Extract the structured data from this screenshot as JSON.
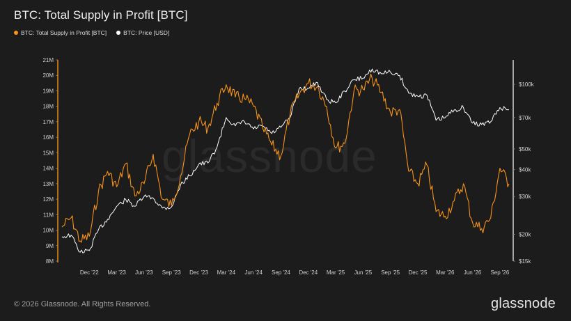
{
  "title": "BTC: Total Supply in Profit [BTC]",
  "legend": [
    {
      "label": "BTC: Total Supply in Profit [BTC]",
      "color": "#f7931a"
    },
    {
      "label": "BTC: Price [USD]",
      "color": "#ffffff"
    }
  ],
  "watermark": "glassnode",
  "footer": "© 2026 Glassnode. All Rights Reserved.",
  "brand": "glassnode",
  "chart_data": {
    "type": "line",
    "x_tick_labels": [
      "Dec '22",
      "Mar '23",
      "Jun '23",
      "Sep '23",
      "Dec '23",
      "Mar '24",
      "Jun '24",
      "Sep '24",
      "Dec '24",
      "Mar '25",
      "Jun '25",
      "Sep '25",
      "Dec '25",
      "Mar '26",
      "Jun '26",
      "Sep '26"
    ],
    "y_left": {
      "scale": "linear",
      "range": [
        8,
        21
      ],
      "ticks": [
        8,
        9,
        10,
        11,
        12,
        13,
        14,
        15,
        16,
        17,
        18,
        19,
        20,
        21
      ],
      "tick_labels": [
        "8M",
        "9M",
        "10M",
        "11M",
        "12M",
        "13M",
        "14M",
        "15M",
        "16M",
        "17M",
        "18M",
        "19M",
        "20M",
        "21M"
      ]
    },
    "y_right": {
      "scale": "log",
      "range": [
        15000,
        130000
      ],
      "ticks": [
        15000,
        20000,
        30000,
        40000,
        50000,
        70000,
        100000
      ],
      "tick_labels": [
        "$15k",
        "$20k",
        "$30k",
        "$40k",
        "$50k",
        "$70k",
        "$100k"
      ]
    },
    "series": [
      {
        "name": "BTC: Total Supply in Profit [BTC]",
        "color": "#f7931a",
        "axis": "left",
        "points": [
          [
            "Sep '22",
            10.2
          ],
          [
            "Oct '22",
            10.8
          ],
          [
            "Nov '22",
            9.3
          ],
          [
            "Dec '22",
            9.6
          ],
          [
            "Jan '23",
            12.5
          ],
          [
            "Feb '23",
            13.8
          ],
          [
            "Mar '23",
            12.8
          ],
          [
            "Apr '23",
            14.3
          ],
          [
            "May '23",
            12.2
          ],
          [
            "Jun '23",
            13.0
          ],
          [
            "Jul '23",
            14.9
          ],
          [
            "Aug '23",
            12.0
          ],
          [
            "Sep '23",
            11.6
          ],
          [
            "Oct '23",
            13.5
          ],
          [
            "Nov '23",
            16.2
          ],
          [
            "Dec '23",
            17.0
          ],
          [
            "Jan '24",
            16.6
          ],
          [
            "Feb '24",
            18.2
          ],
          [
            "Mar '24",
            19.4
          ],
          [
            "Apr '24",
            18.6
          ],
          [
            "May '24",
            18.5
          ],
          [
            "Jun '24",
            18.0
          ],
          [
            "Jul '24",
            16.6
          ],
          [
            "Aug '24",
            15.5
          ],
          [
            "Sep '24",
            14.8
          ],
          [
            "Oct '24",
            17.5
          ],
          [
            "Nov '24",
            18.8
          ],
          [
            "Dec '24",
            19.5
          ],
          [
            "Jan '25",
            19.3
          ],
          [
            "Feb '25",
            18.0
          ],
          [
            "Mar '25",
            15.3
          ],
          [
            "Apr '25",
            15.6
          ],
          [
            "May '25",
            19.0
          ],
          [
            "Jun '25",
            19.1
          ],
          [
            "Jul '25",
            19.8
          ],
          [
            "Aug '25",
            18.9
          ],
          [
            "Sep '25",
            17.6
          ],
          [
            "Oct '25",
            17.8
          ],
          [
            "Nov '25",
            13.8
          ],
          [
            "Dec '25",
            13.0
          ],
          [
            "Jan '26",
            14.2
          ],
          [
            "Feb '26",
            11.2
          ],
          [
            "Mar '26",
            10.9
          ],
          [
            "Apr '26",
            11.9
          ],
          [
            "May '26",
            13.0
          ],
          [
            "Jun '26",
            10.5
          ],
          [
            "Jul '26",
            10.1
          ],
          [
            "Aug '26",
            10.8
          ],
          [
            "Sep '26",
            14.0
          ],
          [
            "Oct '26",
            13.0
          ]
        ]
      },
      {
        "name": "BTC: Price [USD]",
        "color": "#ffffff",
        "axis": "right",
        "points": [
          [
            "Sep '22",
            19500
          ],
          [
            "Oct '22",
            19800
          ],
          [
            "Nov '22",
            16500
          ],
          [
            "Dec '22",
            16800
          ],
          [
            "Jan '23",
            21000
          ],
          [
            "Feb '23",
            23500
          ],
          [
            "Mar '23",
            27000
          ],
          [
            "Apr '23",
            29000
          ],
          [
            "May '23",
            27000
          ],
          [
            "Jun '23",
            30000
          ],
          [
            "Jul '23",
            29500
          ],
          [
            "Aug '23",
            26500
          ],
          [
            "Sep '23",
            26800
          ],
          [
            "Oct '23",
            34000
          ],
          [
            "Nov '23",
            37500
          ],
          [
            "Dec '23",
            42500
          ],
          [
            "Jan '24",
            43000
          ],
          [
            "Feb '24",
            51000
          ],
          [
            "Mar '24",
            70000
          ],
          [
            "Apr '24",
            64000
          ],
          [
            "May '24",
            67000
          ],
          [
            "Jun '24",
            62000
          ],
          [
            "Jul '24",
            64000
          ],
          [
            "Aug '24",
            59000
          ],
          [
            "Sep '24",
            63000
          ],
          [
            "Oct '24",
            70000
          ],
          [
            "Nov '24",
            96000
          ],
          [
            "Dec '24",
            96000
          ],
          [
            "Jan '25",
            102000
          ],
          [
            "Feb '25",
            85000
          ],
          [
            "Mar '25",
            82000
          ],
          [
            "Apr '25",
            93000
          ],
          [
            "May '25",
            105000
          ],
          [
            "Jun '25",
            107000
          ],
          [
            "Jul '25",
            118000
          ],
          [
            "Aug '25",
            112000
          ],
          [
            "Sep '25",
            114000
          ],
          [
            "Oct '25",
            110000
          ],
          [
            "Nov '25",
            91000
          ],
          [
            "Dec '25",
            88000
          ],
          [
            "Jan '26",
            89000
          ],
          [
            "Feb '26",
            68000
          ],
          [
            "Mar '26",
            70000
          ],
          [
            "Apr '26",
            76000
          ],
          [
            "May '26",
            78000
          ],
          [
            "Jun '26",
            66000
          ],
          [
            "Jul '26",
            65000
          ],
          [
            "Aug '26",
            67000
          ],
          [
            "Sep '26",
            78000
          ],
          [
            "Oct '26",
            76000
          ]
        ]
      }
    ],
    "grid": false,
    "legend_position": "top-left"
  }
}
